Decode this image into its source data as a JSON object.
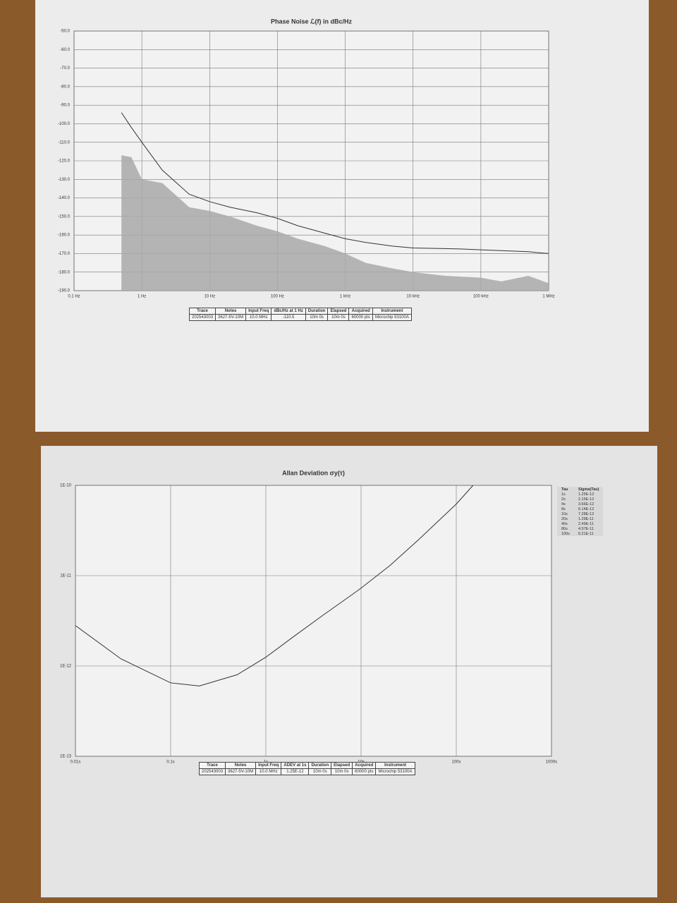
{
  "chart_data": [
    {
      "type": "line",
      "title": "Phase Noise ℒ(f) in dBc/Hz",
      "log_x": true,
      "log_y": false,
      "grid": true,
      "xlim": [
        0.1,
        1000000
      ],
      "xticks": [
        {
          "value": 0.1,
          "label": "0.1 Hz"
        },
        {
          "value": 1,
          "label": "1 Hz"
        },
        {
          "value": 10,
          "label": "10 Hz"
        },
        {
          "value": 100,
          "label": "100 Hz"
        },
        {
          "value": 1000,
          "label": "1 kHz"
        },
        {
          "value": 10000,
          "label": "10 kHz"
        },
        {
          "value": 100000,
          "label": "100 kHz"
        },
        {
          "value": 1000000,
          "label": "1 MHz"
        }
      ],
      "ylim": [
        -190,
        -50
      ],
      "yticks": [
        {
          "value": -190,
          "label": "-190.0"
        },
        {
          "value": -180,
          "label": "-180.0"
        },
        {
          "value": -170,
          "label": "-170.0"
        },
        {
          "value": -160,
          "label": "-160.0"
        },
        {
          "value": -150,
          "label": "-150.0"
        },
        {
          "value": -140,
          "label": "-140.0"
        },
        {
          "value": -130,
          "label": "-130.0"
        },
        {
          "value": -120,
          "label": "-120.0"
        },
        {
          "value": -110,
          "label": "-110.0"
        },
        {
          "value": -100,
          "label": "-100.0"
        },
        {
          "value": -90,
          "label": "-90.0"
        },
        {
          "value": -80,
          "label": "-80.0"
        },
        {
          "value": -70,
          "label": "-70.0"
        },
        {
          "value": -60,
          "label": "-60.0"
        },
        {
          "value": -50,
          "label": "-50.0"
        }
      ],
      "series": [
        {
          "style": "area",
          "color": "#a9a9a9",
          "x": [
            0.5,
            0.7,
            1,
            2,
            5,
            10,
            20,
            50,
            100,
            200,
            500,
            1000,
            2000,
            5000,
            10000,
            30000,
            100000,
            200000,
            500000,
            1000000
          ],
          "values": [
            -117,
            -118,
            -130,
            -132,
            -145,
            -147,
            -150,
            -155,
            -158,
            -162,
            -166,
            -170,
            -175,
            -178,
            -180,
            -182,
            -183,
            -185,
            -182,
            -186
          ]
        },
        {
          "style": "line",
          "color": "#333333",
          "x": [
            0.5,
            0.7,
            1,
            2,
            5,
            10,
            20,
            50,
            100,
            200,
            500,
            1000,
            2000,
            5000,
            10000,
            50000,
            100000,
            500000,
            1000000
          ],
          "values": [
            -94,
            -102,
            -110,
            -125,
            -138,
            -142,
            -145,
            -148,
            -151,
            -155,
            -159,
            -162,
            -164,
            -166,
            -167,
            -167.5,
            -168,
            -169,
            -170
          ]
        }
      ],
      "table": {
        "headers": [
          "Trace",
          "Notes",
          "Input Freq",
          "dBc/Hz at 1 Hz",
          "Duration",
          "Elapsed",
          "Acquired",
          "Instrument"
        ],
        "rows": [
          [
            "202543003",
            "3627-5V-10M",
            "10.0 MHz",
            "-110.5",
            "10m 0s",
            "10m 0s",
            "60000 pts",
            "Microchip 53100A"
          ]
        ]
      }
    },
    {
      "type": "line",
      "title": "Allan Deviation σy(τ)",
      "log_x": true,
      "log_y": true,
      "grid": true,
      "xlim": [
        0.01,
        1000
      ],
      "xticks": [
        {
          "value": 0.01,
          "label": "0.01s"
        },
        {
          "value": 0.1,
          "label": "0.1s"
        },
        {
          "value": 1,
          "label": "1s"
        },
        {
          "value": 10,
          "label": "10s"
        },
        {
          "value": 100,
          "label": "100s"
        },
        {
          "value": 1000,
          "label": "1000s"
        }
      ],
      "ylim": [
        1e-13,
        1e-10
      ],
      "yticks": [
        {
          "value": 1e-13,
          "label": "1E-13"
        },
        {
          "value": 1e-12,
          "label": "1E-12"
        },
        {
          "value": 1e-11,
          "label": "1E-11"
        },
        {
          "value": 1e-10,
          "label": "1E-10"
        }
      ],
      "series": [
        {
          "style": "line",
          "color": "#333333",
          "x": [
            0.01,
            0.03,
            0.1,
            0.2,
            0.5,
            1,
            2,
            4,
            8,
            10,
            20,
            40,
            80,
            100,
            150
          ],
          "values": [
            2.8e-12,
            1.2e-12,
            6.5e-13,
            6e-13,
            8e-13,
            1.25e-12,
            2.15e-12,
            3.66e-12,
            6.14e-12,
            7.28e-12,
            1.29e-11,
            2.49e-11,
            4.97e-11,
            6.21e-11,
            1e-10
          ]
        }
      ],
      "table": {
        "headers": [
          "Trace",
          "Notes",
          "Input Freq",
          "ADEV at 1s",
          "Duration",
          "Elapsed",
          "Acquired",
          "Instrument"
        ],
        "rows": [
          [
            "202543003",
            "3627-5V-10M",
            "10.0 MHz",
            "1.25E-12",
            "10m 0s",
            "10m 0s",
            "60000 pts",
            "Microchip 53100A"
          ]
        ]
      },
      "side_table": {
        "headers": [
          "Tau",
          "Sigma(Tau)"
        ],
        "rows": [
          [
            "1s",
            "1.25E-12"
          ],
          [
            "2s",
            "2.15E-12"
          ],
          [
            "4s",
            "3.66E-12"
          ],
          [
            "8s",
            "6.14E-12"
          ],
          [
            "10s",
            "7.28E-12"
          ],
          [
            "20s",
            "1.29E-11"
          ],
          [
            "40s",
            "2.49E-11"
          ],
          [
            "80s",
            "4.97E-11"
          ],
          [
            "100s",
            "6.21E-11"
          ]
        ]
      }
    }
  ]
}
